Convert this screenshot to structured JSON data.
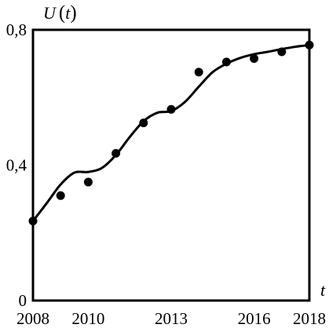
{
  "chart_data": {
    "type": "scatter",
    "title": "",
    "xlabel": "t",
    "ylabel": {
      "func": "U",
      "open": "(",
      "arg": "t",
      "close": ")"
    },
    "xlim": [
      2008,
      2018
    ],
    "ylim": [
      0,
      0.8
    ],
    "x_ticks": [
      {
        "value": 2008,
        "label": "2008"
      },
      {
        "value": 2010,
        "label": "2010"
      },
      {
        "value": 2013,
        "label": "2013"
      },
      {
        "value": 2016,
        "label": "2016"
      },
      {
        "value": 2018,
        "label": "2018"
      }
    ],
    "y_ticks": [
      {
        "value": 0,
        "label": "0"
      },
      {
        "value": 0.4,
        "label": "0,4"
      },
      {
        "value": 0.8,
        "label": "0,8"
      }
    ],
    "grid": false,
    "points": {
      "x": [
        2008,
        2009,
        2010,
        2011,
        2012,
        2013,
        2014,
        2015,
        2016,
        2017,
        2018
      ],
      "y": [
        0.235,
        0.31,
        0.35,
        0.435,
        0.525,
        0.565,
        0.675,
        0.705,
        0.715,
        0.735,
        0.755
      ]
    },
    "fit_curve": {
      "x": [
        2008,
        2008.5,
        2009,
        2009.5,
        2010,
        2010.5,
        2011,
        2011.5,
        2012,
        2012.5,
        2013,
        2013.5,
        2014,
        2014.5,
        2015,
        2015.5,
        2016,
        2016.5,
        2017,
        2017.5,
        2018
      ],
      "y": [
        0.235,
        0.288,
        0.343,
        0.378,
        0.38,
        0.392,
        0.43,
        0.483,
        0.53,
        0.555,
        0.56,
        0.587,
        0.632,
        0.675,
        0.7,
        0.717,
        0.728,
        0.735,
        0.743,
        0.75,
        0.755
      ]
    },
    "colors": {
      "axis": "#000000",
      "point": "#000000",
      "curve": "#000000"
    }
  }
}
